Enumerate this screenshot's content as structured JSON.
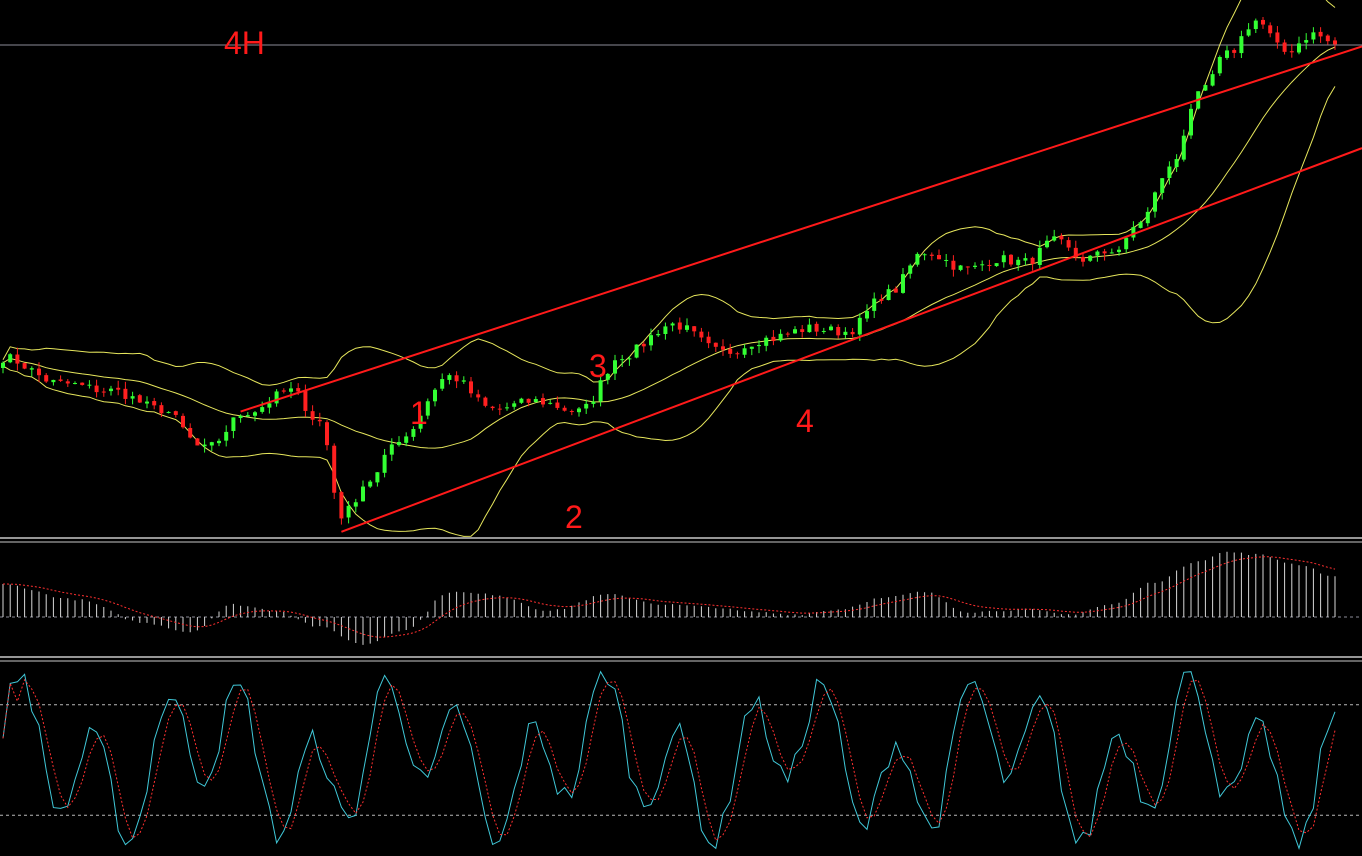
{
  "chart_data": {
    "type": "candlestick",
    "timeframe_label": "4H",
    "wave_labels": [
      "1",
      "2",
      "3",
      "4"
    ],
    "channel": {
      "upper": {
        "from": [
          33,
          6.08
        ],
        "to": [
          185,
          9.6
        ]
      },
      "lower": {
        "from": [
          47,
          4.92
        ],
        "to": [
          185,
          8.62
        ]
      }
    },
    "price_ylim": [
      4.88,
      10.0
    ],
    "price_anchor": [
      [
        0,
        6.6
      ],
      [
        8,
        6.35
      ],
      [
        15,
        6.28
      ],
      [
        22,
        6.1
      ],
      [
        28,
        5.72
      ],
      [
        34,
        6.08
      ],
      [
        40,
        6.28
      ],
      [
        44,
        5.98
      ],
      [
        47,
        5.08
      ],
      [
        51,
        5.42
      ],
      [
        55,
        5.82
      ],
      [
        62,
        6.42
      ],
      [
        68,
        6.1
      ],
      [
        74,
        6.18
      ],
      [
        80,
        6.08
      ],
      [
        86,
        6.62
      ],
      [
        93,
        6.92
      ],
      [
        100,
        6.65
      ],
      [
        106,
        6.78
      ],
      [
        112,
        6.88
      ],
      [
        117,
        6.85
      ],
      [
        123,
        7.22
      ],
      [
        128,
        7.62
      ],
      [
        134,
        7.45
      ],
      [
        138,
        7.55
      ],
      [
        142,
        7.52
      ],
      [
        146,
        7.72
      ],
      [
        150,
        7.55
      ],
      [
        155,
        7.65
      ],
      [
        158,
        7.92
      ],
      [
        162,
        8.42
      ],
      [
        166,
        9.12
      ],
      [
        170,
        9.52
      ],
      [
        174,
        9.85
      ],
      [
        178,
        9.55
      ],
      [
        182,
        9.72
      ],
      [
        185,
        9.62
      ]
    ],
    "macd_ylim": [
      -0.28,
      0.56
    ],
    "macd_anchor": [
      [
        0,
        0.26
      ],
      [
        10,
        0.14
      ],
      [
        20,
        -0.05
      ],
      [
        26,
        -0.12
      ],
      [
        32,
        0.1
      ],
      [
        38,
        0.05
      ],
      [
        44,
        -0.08
      ],
      [
        50,
        -0.22
      ],
      [
        56,
        -0.1
      ],
      [
        62,
        0.2
      ],
      [
        68,
        0.18
      ],
      [
        76,
        0.05
      ],
      [
        84,
        0.18
      ],
      [
        92,
        0.1
      ],
      [
        98,
        0.08
      ],
      [
        104,
        0.04
      ],
      [
        110,
        0.02
      ],
      [
        116,
        0.06
      ],
      [
        122,
        0.15
      ],
      [
        128,
        0.2
      ],
      [
        134,
        0.04
      ],
      [
        142,
        0.06
      ],
      [
        148,
        0.02
      ],
      [
        154,
        0.1
      ],
      [
        160,
        0.28
      ],
      [
        166,
        0.45
      ],
      [
        170,
        0.52
      ],
      [
        174,
        0.5
      ],
      [
        180,
        0.42
      ],
      [
        185,
        0.32
      ]
    ],
    "stoch_ylim": [
      0,
      100
    ],
    "stoch_levels": [
      80,
      20
    ]
  }
}
